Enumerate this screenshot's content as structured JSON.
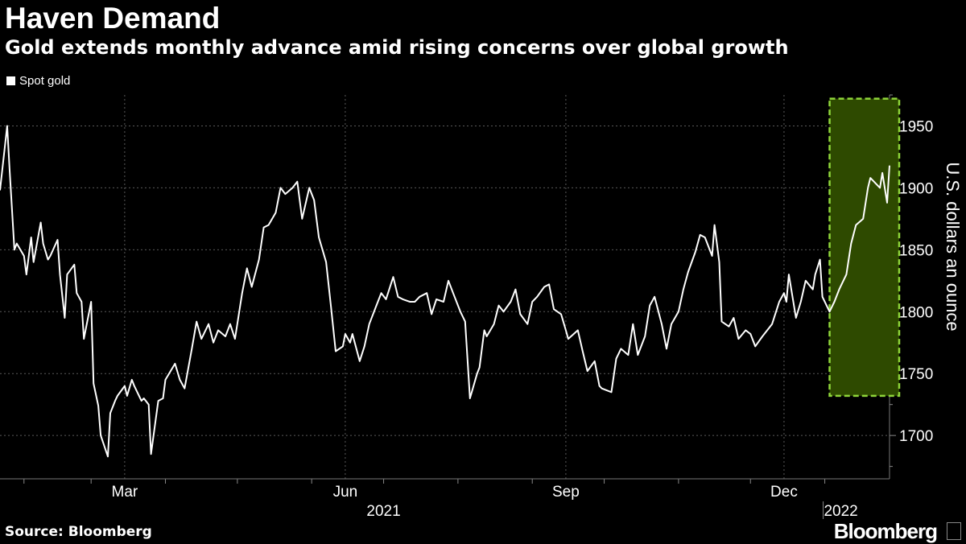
{
  "header": {
    "title": "Haven Demand",
    "subtitle": "Gold extends monthly advance amid rising concerns over global growth"
  },
  "footer": {
    "source": "Source: Bloomberg",
    "brand": "Bloomberg"
  },
  "colors": {
    "background": "#000000",
    "line": "#ffffff",
    "highlight_fill": "#2e4a00",
    "highlight_border": "#8fd63a",
    "grid": "#5a5a5a"
  },
  "chart_data": {
    "type": "line",
    "title": "Haven Demand",
    "subtitle": "Gold extends monthly advance amid rising concerns over global growth",
    "ylabel": "U.S. dollars an ounce",
    "xlabel": "",
    "ylim": [
      1665,
      1975
    ],
    "yticks": [
      1700,
      1750,
      1800,
      1850,
      1900,
      1950
    ],
    "xlim": [
      "2021-01-22",
      "2022-01-28"
    ],
    "grid": true,
    "legend_position": "top-left",
    "x_tick_labels": [
      {
        "label": "Mar",
        "date": "2021-03-15"
      },
      {
        "label": "Jun",
        "date": "2021-06-15"
      },
      {
        "label": "Sep",
        "date": "2021-09-15"
      },
      {
        "label": "Dec",
        "date": "2021-12-15"
      }
    ],
    "year_labels": [
      {
        "label": "2021",
        "date": "2021-07-01"
      },
      {
        "label": "2022",
        "date": "2022-01-01"
      }
    ],
    "highlight": {
      "x_start": "2022-01-03",
      "x_end": "2022-01-28",
      "y_low": 1732,
      "y_high": 1972
    },
    "series": [
      {
        "name": "Spot gold",
        "x": [
          "2021-01-22",
          "2021-01-25",
          "2021-01-26",
          "2021-01-28",
          "2021-01-29",
          "2021-02-01",
          "2021-02-02",
          "2021-02-04",
          "2021-02-05",
          "2021-02-08",
          "2021-02-09",
          "2021-02-11",
          "2021-02-12",
          "2021-02-15",
          "2021-02-16",
          "2021-02-18",
          "2021-02-19",
          "2021-02-22",
          "2021-02-23",
          "2021-02-25",
          "2021-02-26",
          "2021-03-01",
          "2021-03-02",
          "2021-03-04",
          "2021-03-05",
          "2021-03-08",
          "2021-03-09",
          "2021-03-11",
          "2021-03-12",
          "2021-03-15",
          "2021-03-16",
          "2021-03-18",
          "2021-03-19",
          "2021-03-22",
          "2021-03-23",
          "2021-03-25",
          "2021-03-26",
          "2021-03-29",
          "2021-03-31",
          "2021-04-01",
          "2021-04-05",
          "2021-04-07",
          "2021-04-09",
          "2021-04-12",
          "2021-04-14",
          "2021-04-16",
          "2021-04-19",
          "2021-04-21",
          "2021-04-23",
          "2021-04-26",
          "2021-04-28",
          "2021-04-30",
          "2021-05-03",
          "2021-05-05",
          "2021-05-07",
          "2021-05-10",
          "2021-05-12",
          "2021-05-14",
          "2021-05-17",
          "2021-05-19",
          "2021-05-21",
          "2021-05-24",
          "2021-05-26",
          "2021-05-28",
          "2021-05-31",
          "2021-06-02",
          "2021-06-04",
          "2021-06-07",
          "2021-06-09",
          "2021-06-11",
          "2021-06-14",
          "2021-06-15",
          "2021-06-17",
          "2021-06-18",
          "2021-06-21",
          "2021-06-23",
          "2021-06-25",
          "2021-06-28",
          "2021-06-30",
          "2021-07-02",
          "2021-07-05",
          "2021-07-07",
          "2021-07-09",
          "2021-07-12",
          "2021-07-14",
          "2021-07-16",
          "2021-07-19",
          "2021-07-21",
          "2021-07-23",
          "2021-07-26",
          "2021-07-28",
          "2021-07-30",
          "2021-08-02",
          "2021-08-04",
          "2021-08-06",
          "2021-08-09",
          "2021-08-10",
          "2021-08-12",
          "2021-08-13",
          "2021-08-16",
          "2021-08-18",
          "2021-08-20",
          "2021-08-23",
          "2021-08-25",
          "2021-08-27",
          "2021-08-30",
          "2021-09-01",
          "2021-09-03",
          "2021-09-06",
          "2021-09-08",
          "2021-09-10",
          "2021-09-13",
          "2021-09-15",
          "2021-09-16",
          "2021-09-20",
          "2021-09-22",
          "2021-09-24",
          "2021-09-27",
          "2021-09-29",
          "2021-09-30",
          "2021-10-04",
          "2021-10-06",
          "2021-10-08",
          "2021-10-11",
          "2021-10-13",
          "2021-10-15",
          "2021-10-18",
          "2021-10-20",
          "2021-10-22",
          "2021-10-25",
          "2021-10-27",
          "2021-10-29",
          "2021-11-01",
          "2021-11-03",
          "2021-11-05",
          "2021-11-08",
          "2021-11-10",
          "2021-11-12",
          "2021-11-15",
          "2021-11-16",
          "2021-11-18",
          "2021-11-19",
          "2021-11-22",
          "2021-11-24",
          "2021-11-26",
          "2021-11-29",
          "2021-12-01",
          "2021-12-03",
          "2021-12-06",
          "2021-12-08",
          "2021-12-10",
          "2021-12-13",
          "2021-12-15",
          "2021-12-16",
          "2021-12-17",
          "2021-12-20",
          "2021-12-22",
          "2021-12-24",
          "2021-12-27",
          "2021-12-28",
          "2021-12-30",
          "2021-12-31",
          "2022-01-03",
          "2022-01-05",
          "2022-01-07",
          "2022-01-10",
          "2022-01-12",
          "2022-01-14",
          "2022-01-17",
          "2022-01-19",
          "2022-01-20",
          "2022-01-24",
          "2022-01-25",
          "2022-01-27",
          "2022-01-28"
        ],
        "values": [
          1898,
          1950,
          1915,
          1850,
          1855,
          1845,
          1830,
          1860,
          1840,
          1872,
          1855,
          1842,
          1845,
          1858,
          1830,
          1795,
          1830,
          1838,
          1815,
          1808,
          1778,
          1808,
          1742,
          1724,
          1700,
          1683,
          1718,
          1728,
          1732,
          1740,
          1732,
          1745,
          1740,
          1728,
          1730,
          1725,
          1685,
          1728,
          1730,
          1745,
          1758,
          1745,
          1738,
          1770,
          1792,
          1778,
          1790,
          1775,
          1785,
          1780,
          1790,
          1778,
          1815,
          1835,
          1820,
          1842,
          1868,
          1870,
          1880,
          1900,
          1895,
          1900,
          1905,
          1875,
          1900,
          1890,
          1860,
          1840,
          1805,
          1768,
          1772,
          1782,
          1775,
          1782,
          1760,
          1772,
          1790,
          1805,
          1815,
          1810,
          1828,
          1812,
          1810,
          1808,
          1808,
          1812,
          1815,
          1798,
          1810,
          1808,
          1825,
          1815,
          1800,
          1792,
          1730,
          1750,
          1755,
          1785,
          1780,
          1790,
          1805,
          1800,
          1808,
          1818,
          1798,
          1790,
          1808,
          1812,
          1820,
          1822,
          1802,
          1798,
          1785,
          1778,
          1785,
          1768,
          1752,
          1760,
          1740,
          1738,
          1735,
          1762,
          1770,
          1765,
          1790,
          1765,
          1780,
          1805,
          1812,
          1790,
          1770,
          1790,
          1800,
          1818,
          1832,
          1848,
          1862,
          1860,
          1845,
          1870,
          1840,
          1792,
          1788,
          1795,
          1778,
          1785,
          1782,
          1772,
          1780,
          1785,
          1790,
          1808,
          1815,
          1808,
          1830,
          1795,
          1808,
          1825,
          1818,
          1830,
          1842,
          1812,
          1800,
          1808,
          1818,
          1830,
          1855,
          1870,
          1875,
          1900,
          1908,
          1900,
          1912,
          1888,
          1918
        ]
      }
    ]
  }
}
